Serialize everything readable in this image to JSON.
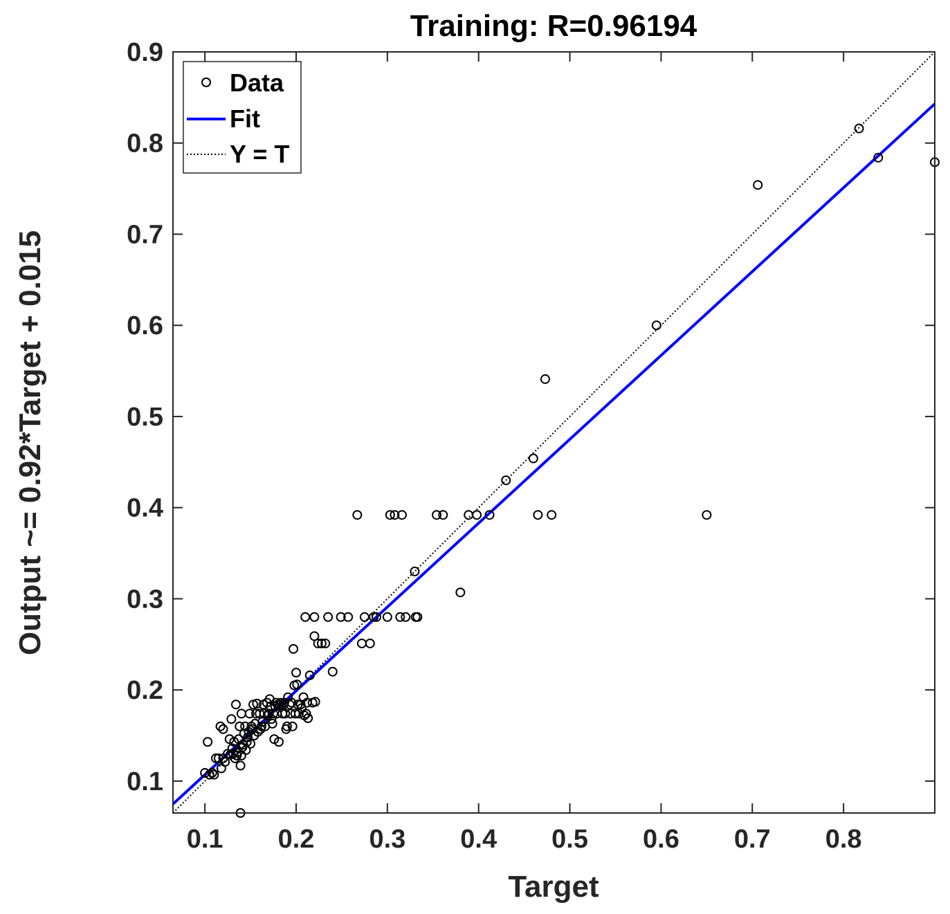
{
  "chart_data": {
    "type": "scatter",
    "title": "Training: R=0.96194",
    "xlabel": "Target",
    "ylabel": "Output ~= 0.92*Target + 0.015",
    "xlim": [
      0.065,
      0.9
    ],
    "ylim": [
      0.065,
      0.9
    ],
    "xticks": [
      0.1,
      0.2,
      0.3,
      0.4,
      0.5,
      0.6,
      0.7,
      0.8
    ],
    "yticks": [
      0.1,
      0.2,
      0.3,
      0.4,
      0.5,
      0.6,
      0.7,
      0.8,
      0.9
    ],
    "xtick_labels": [
      "0.1",
      "0.2",
      "0.3",
      "0.4",
      "0.5",
      "0.6",
      "0.7",
      "0.8"
    ],
    "ytick_labels": [
      "0.1",
      "0.2",
      "0.3",
      "0.4",
      "0.5",
      "0.6",
      "0.7",
      "0.8",
      "0.9"
    ],
    "legend": {
      "placement": "top-left",
      "entries": [
        "Data",
        "Fit",
        "Y = T"
      ]
    },
    "colors": {
      "data": "#000000",
      "fit": "#0000ff",
      "identity": "#000000",
      "axis": "#262626"
    },
    "fit": {
      "slope": 0.92,
      "intercept": 0.015
    },
    "series": [
      {
        "name": "Data",
        "points": [
          [
            0.1,
            0.109
          ],
          [
            0.103,
            0.143
          ],
          [
            0.105,
            0.107
          ],
          [
            0.108,
            0.109
          ],
          [
            0.11,
            0.107
          ],
          [
            0.112,
            0.125
          ],
          [
            0.115,
            0.125
          ],
          [
            0.117,
            0.16
          ],
          [
            0.118,
            0.114
          ],
          [
            0.12,
            0.157
          ],
          [
            0.12,
            0.125
          ],
          [
            0.122,
            0.121
          ],
          [
            0.125,
            0.13
          ],
          [
            0.127,
            0.146
          ],
          [
            0.128,
            0.129
          ],
          [
            0.129,
            0.168
          ],
          [
            0.13,
            0.136
          ],
          [
            0.131,
            0.13
          ],
          [
            0.132,
            0.143
          ],
          [
            0.133,
            0.125
          ],
          [
            0.134,
            0.184
          ],
          [
            0.135,
            0.128
          ],
          [
            0.136,
            0.132
          ],
          [
            0.137,
            0.146
          ],
          [
            0.138,
            0.16
          ],
          [
            0.139,
            0.117
          ],
          [
            0.139,
            0.065
          ],
          [
            0.14,
            0.128
          ],
          [
            0.14,
            0.174
          ],
          [
            0.141,
            0.137
          ],
          [
            0.142,
            0.14
          ],
          [
            0.143,
            0.152
          ],
          [
            0.144,
            0.16
          ],
          [
            0.145,
            0.134
          ],
          [
            0.146,
            0.143
          ],
          [
            0.147,
            0.148
          ],
          [
            0.148,
            0.154
          ],
          [
            0.149,
            0.174
          ],
          [
            0.15,
            0.141
          ],
          [
            0.151,
            0.16
          ],
          [
            0.152,
            0.157
          ],
          [
            0.153,
            0.184
          ],
          [
            0.154,
            0.15
          ],
          [
            0.155,
            0.163
          ],
          [
            0.156,
            0.174
          ],
          [
            0.157,
            0.185
          ],
          [
            0.158,
            0.154
          ],
          [
            0.16,
            0.174
          ],
          [
            0.161,
            0.157
          ],
          [
            0.162,
            0.16
          ],
          [
            0.163,
            0.165
          ],
          [
            0.164,
            0.184
          ],
          [
            0.165,
            0.174
          ],
          [
            0.166,
            0.16
          ],
          [
            0.168,
            0.186
          ],
          [
            0.169,
            0.172
          ],
          [
            0.17,
            0.174
          ],
          [
            0.171,
            0.19
          ],
          [
            0.172,
            0.182
          ],
          [
            0.173,
            0.168
          ],
          [
            0.174,
            0.163
          ],
          [
            0.175,
            0.174
          ],
          [
            0.176,
            0.146
          ],
          [
            0.177,
            0.182
          ],
          [
            0.178,
            0.186
          ],
          [
            0.179,
            0.174
          ],
          [
            0.18,
            0.184
          ],
          [
            0.181,
            0.143
          ],
          [
            0.182,
            0.183
          ],
          [
            0.183,
            0.186
          ],
          [
            0.185,
            0.174
          ],
          [
            0.186,
            0.184
          ],
          [
            0.187,
            0.186
          ],
          [
            0.188,
            0.174
          ],
          [
            0.189,
            0.157
          ],
          [
            0.19,
            0.16
          ],
          [
            0.191,
            0.192
          ],
          [
            0.193,
            0.184
          ],
          [
            0.194,
            0.174
          ],
          [
            0.195,
            0.186
          ],
          [
            0.196,
            0.16
          ],
          [
            0.197,
            0.245
          ],
          [
            0.198,
            0.205
          ],
          [
            0.199,
            0.174
          ],
          [
            0.2,
            0.219
          ],
          [
            0.201,
            0.206
          ],
          [
            0.202,
            0.184
          ],
          [
            0.203,
            0.174
          ],
          [
            0.205,
            0.184
          ],
          [
            0.206,
            0.18
          ],
          [
            0.208,
            0.192
          ],
          [
            0.209,
            0.172
          ],
          [
            0.21,
            0.28
          ],
          [
            0.211,
            0.174
          ],
          [
            0.212,
            0.186
          ],
          [
            0.213,
            0.169
          ],
          [
            0.215,
            0.216
          ],
          [
            0.218,
            0.186
          ],
          [
            0.22,
            0.28
          ],
          [
            0.22,
            0.259
          ],
          [
            0.221,
            0.187
          ],
          [
            0.224,
            0.251
          ],
          [
            0.228,
            0.251
          ],
          [
            0.232,
            0.251
          ],
          [
            0.235,
            0.28
          ],
          [
            0.24,
            0.22
          ],
          [
            0.249,
            0.28
          ],
          [
            0.257,
            0.28
          ],
          [
            0.267,
            0.392
          ],
          [
            0.272,
            0.251
          ],
          [
            0.275,
            0.28
          ],
          [
            0.281,
            0.251
          ],
          [
            0.285,
            0.28
          ],
          [
            0.288,
            0.28
          ],
          [
            0.3,
            0.28
          ],
          [
            0.303,
            0.392
          ],
          [
            0.308,
            0.392
          ],
          [
            0.314,
            0.28
          ],
          [
            0.316,
            0.392
          ],
          [
            0.32,
            0.28
          ],
          [
            0.33,
            0.33
          ],
          [
            0.331,
            0.28
          ],
          [
            0.333,
            0.28
          ],
          [
            0.354,
            0.392
          ],
          [
            0.361,
            0.392
          ],
          [
            0.38,
            0.307
          ],
          [
            0.389,
            0.392
          ],
          [
            0.398,
            0.392
          ],
          [
            0.412,
            0.392
          ],
          [
            0.43,
            0.43
          ],
          [
            0.46,
            0.454
          ],
          [
            0.465,
            0.392
          ],
          [
            0.473,
            0.541
          ],
          [
            0.48,
            0.392
          ],
          [
            0.595,
            0.6
          ],
          [
            0.65,
            0.392
          ],
          [
            0.706,
            0.754
          ],
          [
            0.817,
            0.816
          ],
          [
            0.838,
            0.784
          ],
          [
            0.9,
            0.779
          ]
        ]
      }
    ]
  }
}
